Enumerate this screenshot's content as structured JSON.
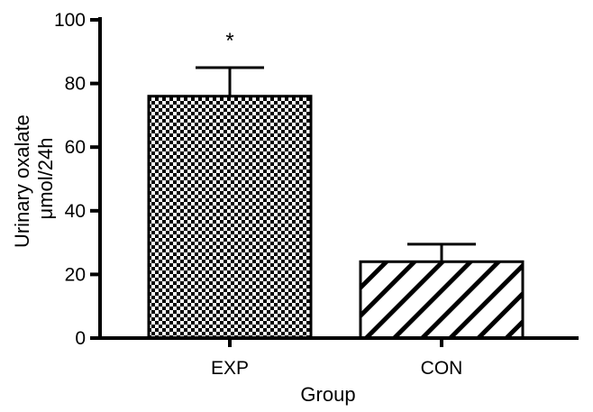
{
  "chart_data": {
    "type": "bar",
    "categories": [
      "EXP",
      "CON"
    ],
    "values": [
      76,
      24
    ],
    "error_upper": [
      85,
      29.5
    ],
    "annotations": [
      "*",
      ""
    ],
    "bar_patterns": [
      "checkerboard",
      "diagonal-stripes"
    ],
    "ylabel_lines": [
      "Urinary oxalate",
      "μmol/24h"
    ],
    "xlabel": "Group",
    "ylim": [
      0,
      100
    ],
    "yticks": [
      0,
      20,
      40,
      60,
      80,
      100
    ],
    "grid": false,
    "legend": "none"
  }
}
